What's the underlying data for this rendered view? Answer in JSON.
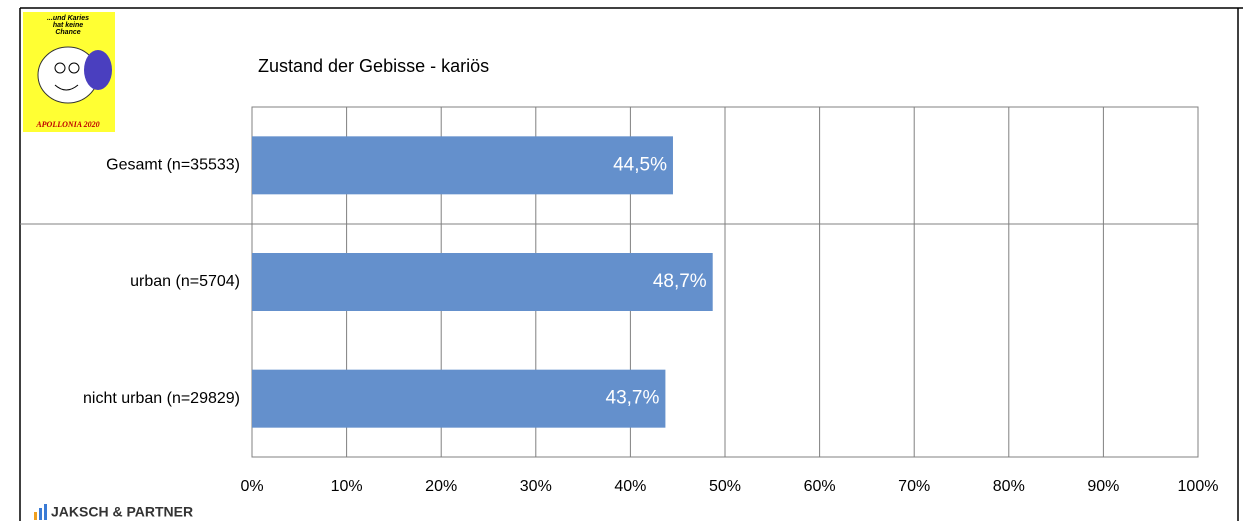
{
  "chart_data": {
    "type": "hbar",
    "title": "Zustand der Gebisse - kariös",
    "categories": [
      "Gesamt (n=35533)",
      "urban (n=5704)",
      "nicht urban (n=29829)"
    ],
    "values": [
      44.5,
      48.7,
      43.7
    ],
    "value_labels": [
      "44,5%",
      "48,7%",
      "43,7%"
    ],
    "color": "#6490cc",
    "xlim": [
      0,
      100
    ],
    "xticks": [
      {
        "value": 0,
        "label": "0%"
      },
      {
        "value": 10,
        "label": "10%"
      },
      {
        "value": 20,
        "label": "20%"
      },
      {
        "value": 30,
        "label": "30%"
      },
      {
        "value": 40,
        "label": "40%"
      },
      {
        "value": 50,
        "label": "50%"
      },
      {
        "value": 60,
        "label": "60%"
      },
      {
        "value": 70,
        "label": "70%"
      },
      {
        "value": 80,
        "label": "80%"
      },
      {
        "value": 90,
        "label": "90%"
      },
      {
        "value": 100,
        "label": "100%"
      }
    ],
    "grid": true
  },
  "branding": {
    "badge_lines": [
      "...und Karies",
      "hat keine",
      "Chance"
    ],
    "badge_footer": "APOLLONIA 2020",
    "company": "JAKSCH & PARTNER"
  }
}
